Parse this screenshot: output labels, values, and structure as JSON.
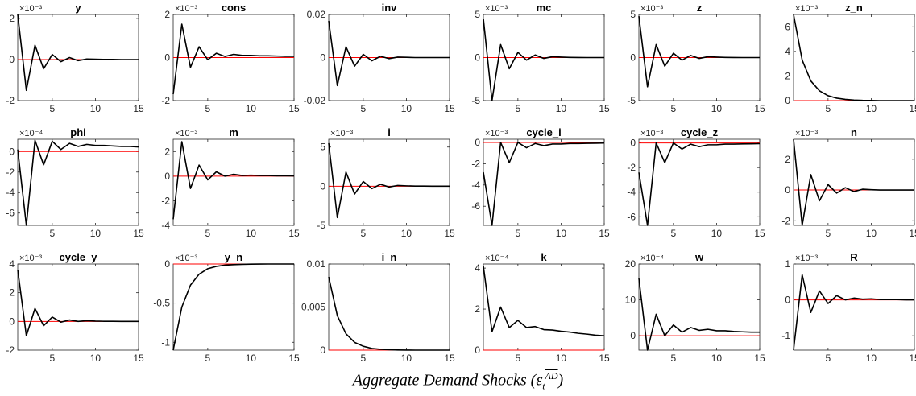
{
  "chart_data": {
    "type": "line",
    "layout": "3x6 grid of impulse-response subplots",
    "x_ticks": [
      5,
      10,
      15
    ],
    "x_range": [
      1,
      15
    ],
    "zero_line_color": "#ff0000",
    "response_color": "#000000",
    "panels": [
      {
        "title": "y",
        "exponent": "×10⁻³",
        "yticks": [
          -2,
          0,
          2
        ],
        "ylim": [
          -2,
          2.2
        ],
        "values": [
          2.2,
          -1.5,
          0.7,
          -0.45,
          0.25,
          -0.1,
          0.1,
          -0.05,
          0.03,
          0.02,
          0.01,
          0.01,
          0.0,
          0.0,
          0.0
        ]
      },
      {
        "title": "cons",
        "exponent": "×10⁻³",
        "yticks": [
          -2,
          0,
          2
        ],
        "ylim": [
          -2,
          2
        ],
        "values": [
          -1.7,
          1.55,
          -0.45,
          0.5,
          -0.1,
          0.2,
          0.05,
          0.15,
          0.1,
          0.1,
          0.08,
          0.08,
          0.07,
          0.06,
          0.06
        ]
      },
      {
        "title": "inv",
        "exponent": "",
        "yticks": [
          -0.02,
          0,
          0.02
        ],
        "ylim": [
          -0.02,
          0.02
        ],
        "values": [
          0.017,
          -0.013,
          0.005,
          -0.004,
          0.0015,
          -0.0015,
          0.0006,
          -0.0005,
          0.0002,
          0.0001,
          0.0,
          0.0,
          0.0,
          0.0,
          0.0
        ]
      },
      {
        "title": "mc",
        "exponent": "×10⁻³",
        "yticks": [
          -5,
          0,
          5
        ],
        "ylim": [
          -5,
          5
        ],
        "values": [
          4.5,
          -5.0,
          1.5,
          -1.3,
          0.6,
          -0.3,
          0.3,
          -0.1,
          0.1,
          0.05,
          0.02,
          0.01,
          0.0,
          0.0,
          0.0
        ]
      },
      {
        "title": "z",
        "exponent": "×10⁻³",
        "yticks": [
          -5,
          0,
          5
        ],
        "ylim": [
          -5,
          5
        ],
        "values": [
          4.8,
          -3.4,
          1.5,
          -1.0,
          0.5,
          -0.3,
          0.25,
          -0.1,
          0.1,
          0.05,
          0.02,
          0.01,
          0.0,
          0.0,
          0.0
        ]
      },
      {
        "title": "z_n",
        "exponent": "×10⁻³",
        "yticks": [
          0,
          2,
          4,
          6
        ],
        "ylim": [
          0,
          7
        ],
        "values": [
          7.0,
          3.3,
          1.6,
          0.8,
          0.4,
          0.2,
          0.1,
          0.05,
          0.02,
          0.01,
          0.0,
          0.0,
          0.0,
          0.0,
          0.0
        ]
      },
      {
        "title": "phi",
        "exponent": "×10⁻⁴",
        "yticks": [
          -6,
          -4,
          -2,
          0
        ],
        "ylim": [
          -7.2,
          1.2
        ],
        "values": [
          0.2,
          -7.2,
          1.1,
          -1.3,
          1.0,
          0.2,
          0.8,
          0.5,
          0.7,
          0.6,
          0.6,
          0.55,
          0.5,
          0.5,
          0.45
        ]
      },
      {
        "title": "m",
        "exponent": "×10⁻³",
        "yticks": [
          -4,
          -2,
          0,
          2
        ],
        "ylim": [
          -4,
          3
        ],
        "values": [
          -3.5,
          2.8,
          -1.0,
          0.9,
          -0.3,
          0.35,
          0.0,
          0.15,
          0.05,
          0.08,
          0.05,
          0.05,
          0.03,
          0.03,
          0.02
        ]
      },
      {
        "title": "i",
        "exponent": "×10⁻³",
        "yticks": [
          -5,
          0,
          5
        ],
        "ylim": [
          -5,
          6
        ],
        "values": [
          5.5,
          -4.0,
          1.8,
          -1.0,
          0.6,
          -0.3,
          0.25,
          -0.1,
          0.1,
          0.05,
          0.02,
          0.02,
          0.01,
          0.0,
          0.0
        ]
      },
      {
        "title": "cycle_i",
        "exponent": "×10⁻³",
        "yticks": [
          -6,
          -4,
          -2,
          0
        ],
        "ylim": [
          -7.8,
          0.3
        ],
        "values": [
          -2.8,
          -7.8,
          0.0,
          -1.9,
          0.0,
          -0.5,
          -0.1,
          -0.3,
          -0.15,
          -0.15,
          -0.1,
          -0.1,
          -0.08,
          -0.07,
          -0.06
        ]
      },
      {
        "title": "cycle_z",
        "exponent": "×10⁻³",
        "yticks": [
          -6,
          -4,
          -2,
          0
        ],
        "ylim": [
          -6.7,
          0.3
        ],
        "values": [
          -2.4,
          -6.7,
          0.0,
          -1.6,
          0.0,
          -0.5,
          -0.1,
          -0.3,
          -0.15,
          -0.15,
          -0.1,
          -0.1,
          -0.08,
          -0.07,
          -0.06
        ]
      },
      {
        "title": "n",
        "exponent": "×10⁻³",
        "yticks": [
          -2,
          0,
          2
        ],
        "ylim": [
          -2.3,
          3.3
        ],
        "values": [
          3.3,
          -2.3,
          1.0,
          -0.7,
          0.35,
          -0.2,
          0.15,
          -0.1,
          0.05,
          0.02,
          0.0,
          0.0,
          0.0,
          0.0,
          0.0
        ]
      },
      {
        "title": "cycle_y",
        "exponent": "×10⁻³",
        "yticks": [
          -2,
          0,
          2,
          4
        ],
        "ylim": [
          -2,
          4
        ],
        "values": [
          3.6,
          -1.0,
          0.9,
          -0.3,
          0.3,
          -0.05,
          0.1,
          0.0,
          0.05,
          0.02,
          0.01,
          0.01,
          0.0,
          0.0,
          0.0
        ]
      },
      {
        "title": "y_n",
        "exponent": "×10⁻³",
        "yticks": [
          -1,
          -0.5,
          0
        ],
        "ylim": [
          -1.1,
          0
        ],
        "values": [
          -1.1,
          -0.55,
          -0.27,
          -0.13,
          -0.06,
          -0.03,
          -0.015,
          -0.008,
          -0.004,
          -0.002,
          -0.001,
          0.0,
          0.0,
          0.0,
          0.0
        ]
      },
      {
        "title": "i_n",
        "exponent": "",
        "yticks": [
          0,
          0.005,
          0.01
        ],
        "ylim": [
          0,
          0.01
        ],
        "values": [
          0.0085,
          0.004,
          0.0019,
          0.0009,
          0.00045,
          0.0002,
          0.0001,
          5e-05,
          2e-05,
          1e-05,
          0.0,
          0.0,
          0.0,
          0.0,
          0.0
        ]
      },
      {
        "title": "k",
        "exponent": "×10⁻⁴",
        "yticks": [
          0,
          2,
          4
        ],
        "ylim": [
          0,
          4.2
        ],
        "values": [
          4.1,
          0.9,
          2.1,
          1.1,
          1.45,
          1.1,
          1.15,
          1.0,
          0.98,
          0.92,
          0.88,
          0.82,
          0.78,
          0.73,
          0.7
        ]
      },
      {
        "title": "w",
        "exponent": "×10⁻⁴",
        "yticks": [
          0,
          10,
          20
        ],
        "ylim": [
          -4,
          20
        ],
        "values": [
          16.0,
          -4.0,
          6.0,
          0.0,
          3.0,
          1.0,
          2.3,
          1.5,
          1.8,
          1.4,
          1.4,
          1.2,
          1.1,
          1.0,
          1.0
        ]
      },
      {
        "title": "R",
        "exponent": "×10⁻³",
        "yticks": [
          -1,
          0,
          1
        ],
        "ylim": [
          -1.4,
          1
        ],
        "values": [
          -1.4,
          0.7,
          -0.35,
          0.25,
          -0.1,
          0.12,
          0.0,
          0.05,
          0.02,
          0.03,
          0.01,
          0.01,
          0.01,
          0.0,
          0.0
        ]
      }
    ]
  },
  "caption": {
    "text": "Aggregate Demand Shocks (",
    "symbol": "ε",
    "subscript": "t",
    "superscript": "AD",
    "close": ")"
  }
}
